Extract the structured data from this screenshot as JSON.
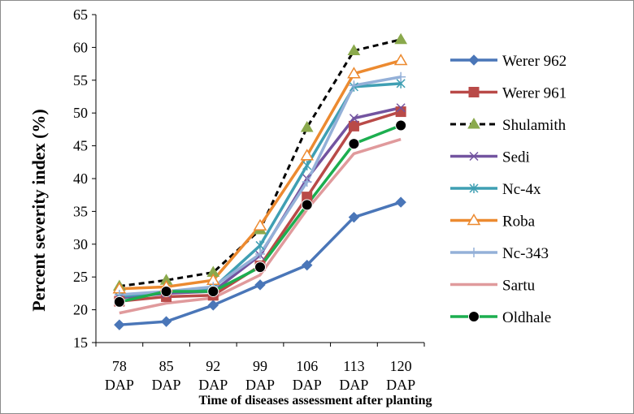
{
  "chart_data": {
    "type": "line",
    "title": "",
    "ylabel": "Percent  severity index (%)",
    "xlabel": "Time of diseases assessment after planting",
    "ylim": [
      15,
      65
    ],
    "yticks": [
      "15",
      "20",
      "25",
      "30",
      "35",
      "40",
      "45",
      "50",
      "55",
      "60",
      "65"
    ],
    "categories": [
      {
        "top": "78",
        "bottom": "DAP"
      },
      {
        "top": "85",
        "bottom": "DAP"
      },
      {
        "top": "92",
        "bottom": "DAP"
      },
      {
        "top": "99",
        "bottom": "DAP"
      },
      {
        "top": "106",
        "bottom": "DAP"
      },
      {
        "top": "113",
        "bottom": "DAP"
      },
      {
        "top": "120",
        "bottom": "DAP"
      }
    ],
    "grid": false,
    "legend_position": "right",
    "series": [
      {
        "name": "Werer 962",
        "color": "#4a76b8",
        "marker": "diamond",
        "dash": false,
        "values": [
          17.7,
          18.2,
          20.7,
          23.8,
          26.8,
          34.1,
          36.4
        ]
      },
      {
        "name": "Werer 961",
        "color": "#b94a48",
        "marker": "square",
        "dash": false,
        "values": [
          21.3,
          22.0,
          22.2,
          26.7,
          37.2,
          48.0,
          50.2
        ]
      },
      {
        "name": "Shulamith",
        "color": "#000000",
        "marker": "triangle",
        "marker_color": "#8aa94c",
        "dash": true,
        "values": [
          23.6,
          24.5,
          25.7,
          32.2,
          47.8,
          59.5,
          61.2
        ]
      },
      {
        "name": "Sedi",
        "color": "#7354a0",
        "marker": "x",
        "dash": false,
        "values": [
          21.8,
          22.5,
          22.8,
          28.3,
          40.0,
          49.2,
          50.8
        ]
      },
      {
        "name": "Nc-4x",
        "color": "#3f9fb3",
        "marker": "asterisk",
        "dash": false,
        "values": [
          22.0,
          22.8,
          23.3,
          29.8,
          42.0,
          54.0,
          54.5
        ]
      },
      {
        "name": "Roba",
        "color": "#ec8a30",
        "marker": "triangle-open",
        "dash": false,
        "values": [
          23.2,
          23.5,
          24.5,
          32.8,
          43.5,
          56.0,
          58.0
        ]
      },
      {
        "name": "Nc-343",
        "color": "#94b0d8",
        "marker": "plus",
        "dash": false,
        "values": [
          22.3,
          22.8,
          23.5,
          28.5,
          39.5,
          54.2,
          55.5
        ]
      },
      {
        "name": "Sartu",
        "color": "#e09a9c",
        "marker": "none",
        "dash": false,
        "values": [
          19.5,
          21.0,
          21.8,
          25.3,
          35.3,
          43.8,
          46.0
        ]
      },
      {
        "name": "Oldhale",
        "color": "#1cae4f",
        "marker": "circle",
        "marker_color": "#000000",
        "dash": false,
        "values": [
          21.2,
          22.8,
          22.8,
          26.5,
          36.0,
          45.3,
          48.1
        ]
      }
    ]
  }
}
